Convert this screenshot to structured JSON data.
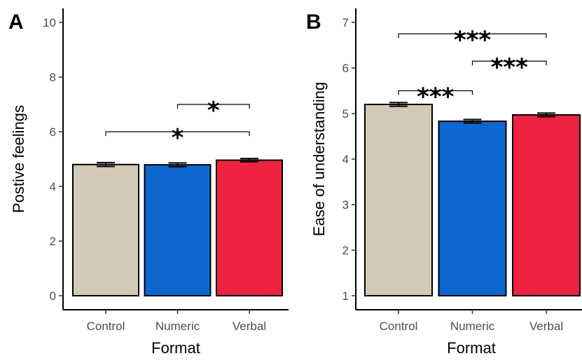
{
  "chart_data": [
    {
      "panel": "A",
      "type": "bar",
      "categories": [
        "Control",
        "Numeric",
        "Verbal"
      ],
      "values": [
        4.8,
        4.79,
        4.96
      ],
      "errors": [
        0.07,
        0.07,
        0.06
      ],
      "colors": [
        "#d3c9b9",
        "#0d67d1",
        "#ee2340"
      ],
      "xlabel": "Format",
      "ylabel": "Postive feelings",
      "ylim": [
        0,
        10
      ],
      "yticks": [
        0,
        2,
        4,
        6,
        8,
        10
      ],
      "baseline": 0,
      "grid": false,
      "comparisons": [
        {
          "from": 1,
          "to": 2,
          "y": 7.0,
          "label": "*"
        },
        {
          "from": 0,
          "to": 2,
          "y": 6.0,
          "label": "*"
        }
      ]
    },
    {
      "panel": "B",
      "type": "bar",
      "categories": [
        "Control",
        "Numeric",
        "Verbal"
      ],
      "values": [
        5.2,
        4.83,
        4.97
      ],
      "errors": [
        0.04,
        0.04,
        0.04
      ],
      "colors": [
        "#d3c9b9",
        "#0d67d1",
        "#ee2340"
      ],
      "xlabel": "Format",
      "ylabel": "Ease of understanding",
      "ylim": [
        1,
        7
      ],
      "yticks": [
        1,
        2,
        3,
        4,
        5,
        6,
        7
      ],
      "baseline": 1,
      "grid": false,
      "comparisons": [
        {
          "from": 0,
          "to": 1,
          "y": 5.5,
          "label": "***"
        },
        {
          "from": 1,
          "to": 2,
          "y": 6.15,
          "label": "***"
        },
        {
          "from": 0,
          "to": 2,
          "y": 6.75,
          "label": "***"
        }
      ]
    }
  ]
}
